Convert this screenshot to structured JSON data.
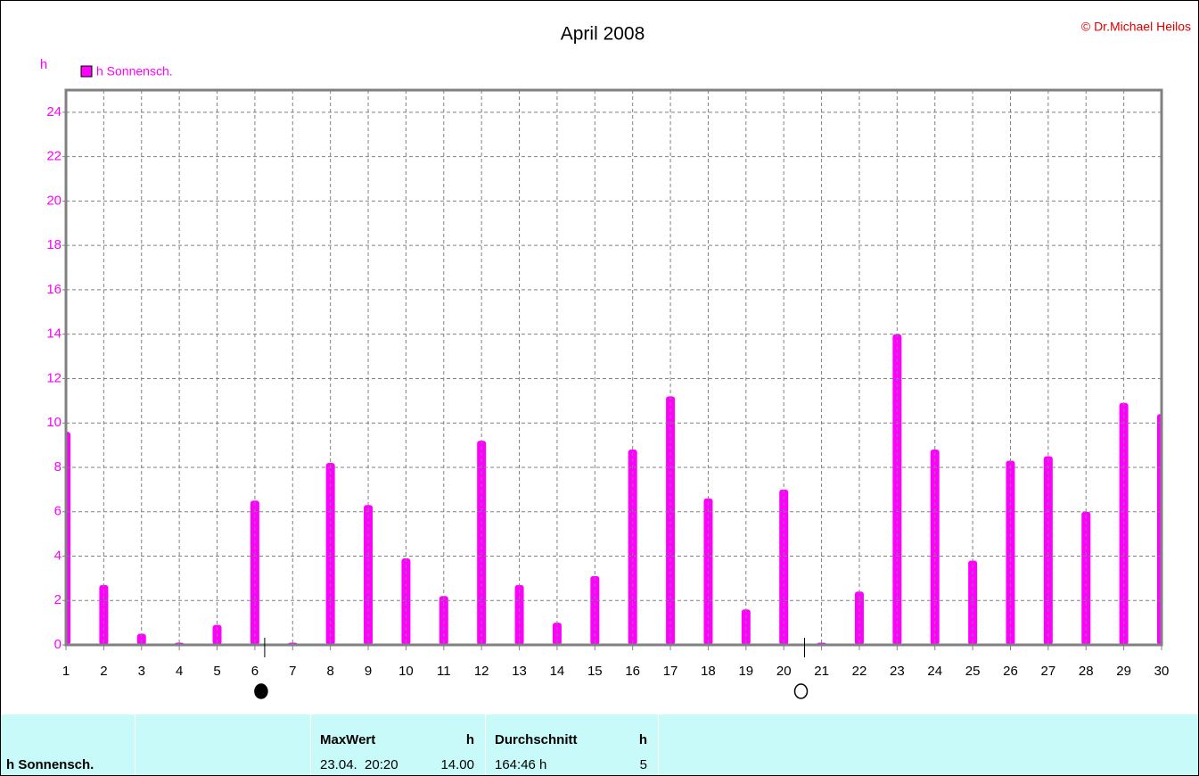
{
  "chart_data": {
    "type": "bar",
    "title": "April 2008",
    "credit": "© Dr.Michael Heilos",
    "y_label": "h",
    "x": [
      1,
      2,
      3,
      4,
      5,
      6,
      7,
      8,
      9,
      10,
      11,
      12,
      13,
      14,
      15,
      16,
      17,
      18,
      19,
      20,
      21,
      22,
      23,
      24,
      25,
      26,
      27,
      28,
      29,
      30
    ],
    "series": [
      {
        "name": "h Sonnensch.",
        "color": "#ff00ff",
        "values": [
          9.6,
          2.7,
          0.5,
          0.1,
          0.9,
          6.5,
          0.1,
          8.2,
          6.3,
          3.9,
          2.2,
          9.2,
          2.7,
          1.0,
          3.1,
          8.8,
          11.2,
          6.6,
          1.6,
          7.0,
          0.1,
          2.4,
          14.0,
          8.8,
          3.8,
          8.3,
          8.5,
          6.0,
          10.9,
          10.4
        ]
      }
    ],
    "xlim": [
      1,
      30
    ],
    "xticks": [
      1,
      2,
      3,
      4,
      5,
      6,
      7,
      8,
      9,
      10,
      11,
      12,
      13,
      14,
      15,
      16,
      17,
      18,
      19,
      20,
      21,
      22,
      23,
      24,
      25,
      26,
      27,
      28,
      29,
      30
    ],
    "ylim": [
      0,
      25
    ],
    "yticks": [
      0,
      2,
      4,
      6,
      8,
      10,
      12,
      14,
      16,
      18,
      20,
      22,
      24
    ],
    "grid": true,
    "new_moon_x": 6.26,
    "full_moon_x": 20.55
  },
  "table": {
    "row_label": "h Sonnensch.",
    "blocks": [
      {
        "title": "MaxWert",
        "unit": "h",
        "info": "23.04.  20:20",
        "value": "14.00"
      },
      {
        "title": "Durchschnitt",
        "unit": "h",
        "info": "164:46 h",
        "value": "5"
      }
    ]
  }
}
